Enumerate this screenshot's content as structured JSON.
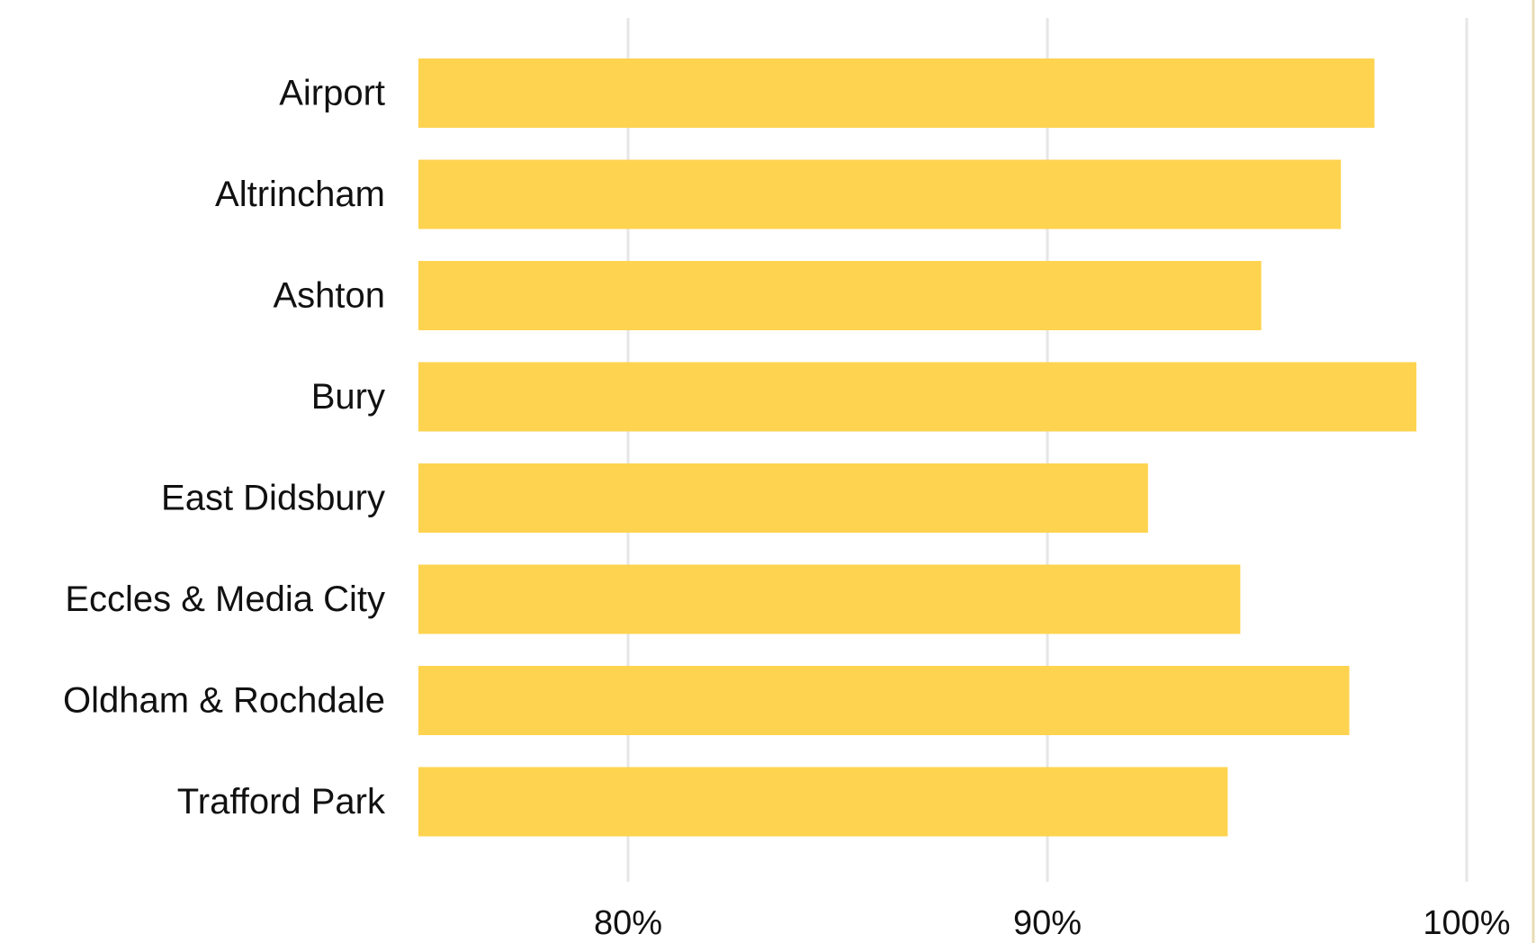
{
  "chart_data": {
    "type": "bar",
    "orientation": "horizontal",
    "categories": [
      "Airport",
      "Altrincham",
      "Ashton",
      "Bury",
      "East Didsbury",
      "Eccles & Media City",
      "Oldham & Rochdale",
      "Trafford Park"
    ],
    "values": [
      97.8,
      97.0,
      95.1,
      98.8,
      92.4,
      94.6,
      97.2,
      94.3
    ],
    "unit": "%",
    "xlim": [
      75,
      100
    ],
    "x_ticks": [
      80,
      90,
      100
    ],
    "x_tick_labels": [
      "80%",
      "90%",
      "100%"
    ],
    "title": "",
    "xlabel": "",
    "ylabel": "",
    "grid": "vertical",
    "legend": "none",
    "bar_color": "#fed34f",
    "grid_color": "#e6e6e6",
    "text_color": "#111111"
  }
}
